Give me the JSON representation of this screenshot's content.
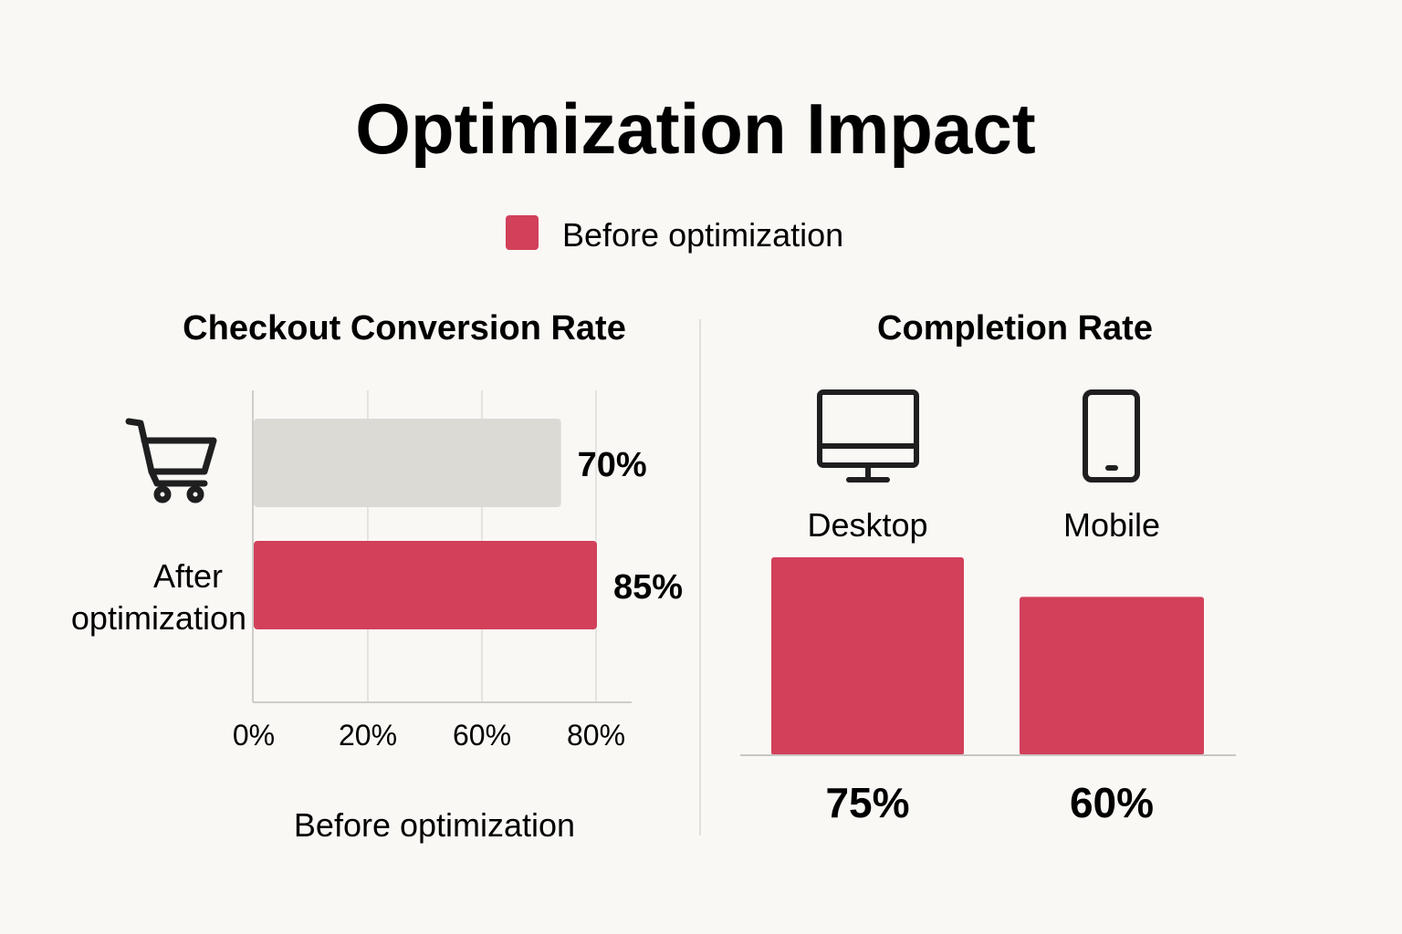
{
  "title": "Optimization Impact",
  "legend": {
    "label": "Before optimization",
    "color": "#d2405a"
  },
  "colors": {
    "accent": "#d2405a",
    "muted": "#dcdad5",
    "text": "#1f1f1f",
    "grid": "#dedcd8"
  },
  "chart_data": [
    {
      "type": "bar",
      "orientation": "horizontal",
      "title": "Checkout Conversion Rate",
      "icon": "shopping-cart-icon",
      "categories": [
        "",
        "After optimization"
      ],
      "values": [
        70,
        85
      ],
      "value_labels": [
        "70%",
        "85%"
      ],
      "bar_colors": [
        "#dcdad5",
        "#d2405a"
      ],
      "xtick_labels": [
        "0%",
        "20%",
        "60%",
        "80%"
      ],
      "xlabel": "Before optimization",
      "grid": true
    },
    {
      "type": "bar",
      "orientation": "vertical",
      "title": "Completion Rate",
      "categories": [
        "Desktop",
        "Mobile"
      ],
      "icons": [
        "desktop-monitor-icon",
        "mobile-phone-icon"
      ],
      "values": [
        75,
        60
      ],
      "value_labels": [
        "75%",
        "60%"
      ],
      "bar_colors": [
        "#d2405a",
        "#d2405a"
      ],
      "grid": false
    }
  ]
}
